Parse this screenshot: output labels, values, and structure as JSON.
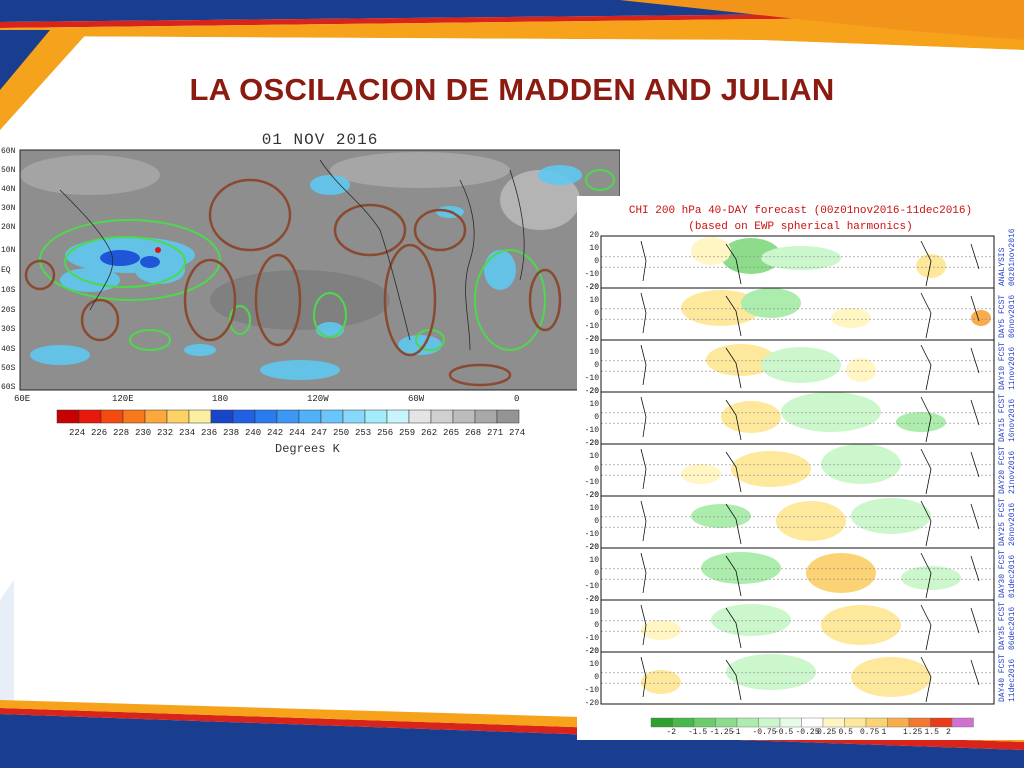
{
  "slide": {
    "title": "LA OSCILACION DE MADDEN AND JULIAN"
  },
  "olr_map": {
    "date": "01 NOV 2016",
    "lat_labels": [
      "60N",
      "50N",
      "40N",
      "30N",
      "20N",
      "10N",
      "EQ",
      "10S",
      "20S",
      "30S",
      "40S",
      "50S",
      "60S"
    ],
    "lon_labels": [
      "60E",
      "120E",
      "180",
      "120W",
      "60W",
      "0"
    ],
    "colorbar_values": [
      "224",
      "226",
      "228",
      "230",
      "232",
      "234",
      "236",
      "238",
      "240",
      "242",
      "244",
      "247",
      "250",
      "253",
      "256",
      "259",
      "262",
      "265",
      "268",
      "271",
      "274"
    ],
    "colorbar_colors": [
      "#c80000",
      "#e8180c",
      "#f44a10",
      "#f8781c",
      "#fca83c",
      "#fcd264",
      "#fcf0a0",
      "#1846c8",
      "#2060e4",
      "#287cf0",
      "#3c98f4",
      "#50b0f8",
      "#6cc4fc",
      "#88d8fc",
      "#a4ecfc",
      "#c8f4fc",
      "#e4e4e4",
      "#d0d0d0",
      "#bcbcbc",
      "#a8a8a8",
      "#949494"
    ],
    "unit_label": "Degrees K"
  },
  "forecast": {
    "title_line1": "CHI 200 hPa 40-DAY forecast (00z01nov2016-11dec2016)",
    "title_line2": "(based on EWP spherical harmonics)",
    "y_ticks": [
      "20",
      "10",
      "0",
      "-10",
      "-20"
    ],
    "panels": [
      {
        "label1": "ANALYSIS",
        "label2": "00z01nov2016"
      },
      {
        "label1": "DAY5 FCST",
        "label2": "06nov2016"
      },
      {
        "label1": "DAY10 FCST",
        "label2": "11nov2016"
      },
      {
        "label1": "DAY15 FCST",
        "label2": "16nov2016"
      },
      {
        "label1": "DAY20 FCST",
        "label2": "21nov2016"
      },
      {
        "label1": "DAY25 FCST",
        "label2": "26nov2016"
      },
      {
        "label1": "DAY30 FCST",
        "label2": "01dec2016"
      },
      {
        "label1": "DAY35 FCST",
        "label2": "06dec2016"
      },
      {
        "label1": "DAY40 FCST",
        "label2": "11dec2016"
      }
    ],
    "colorbar_values": [
      "-2",
      "-1.5",
      "-1.25",
      "-1",
      "-0.75",
      "-0.5",
      "-0.25",
      "0.25",
      "0.5",
      "0.75",
      "1",
      "1.25",
      "1.5",
      "2"
    ],
    "colorbar_colors": [
      "#2ea02e",
      "#48b848",
      "#6ccc6c",
      "#8cdc8c",
      "#acecac",
      "#ccf6cc",
      "#e6fae6",
      "#ffffff",
      "#fff6c4",
      "#fde89c",
      "#fbd274",
      "#f8ac4c",
      "#f07830",
      "#e83c1c",
      "#d070d0"
    ]
  }
}
